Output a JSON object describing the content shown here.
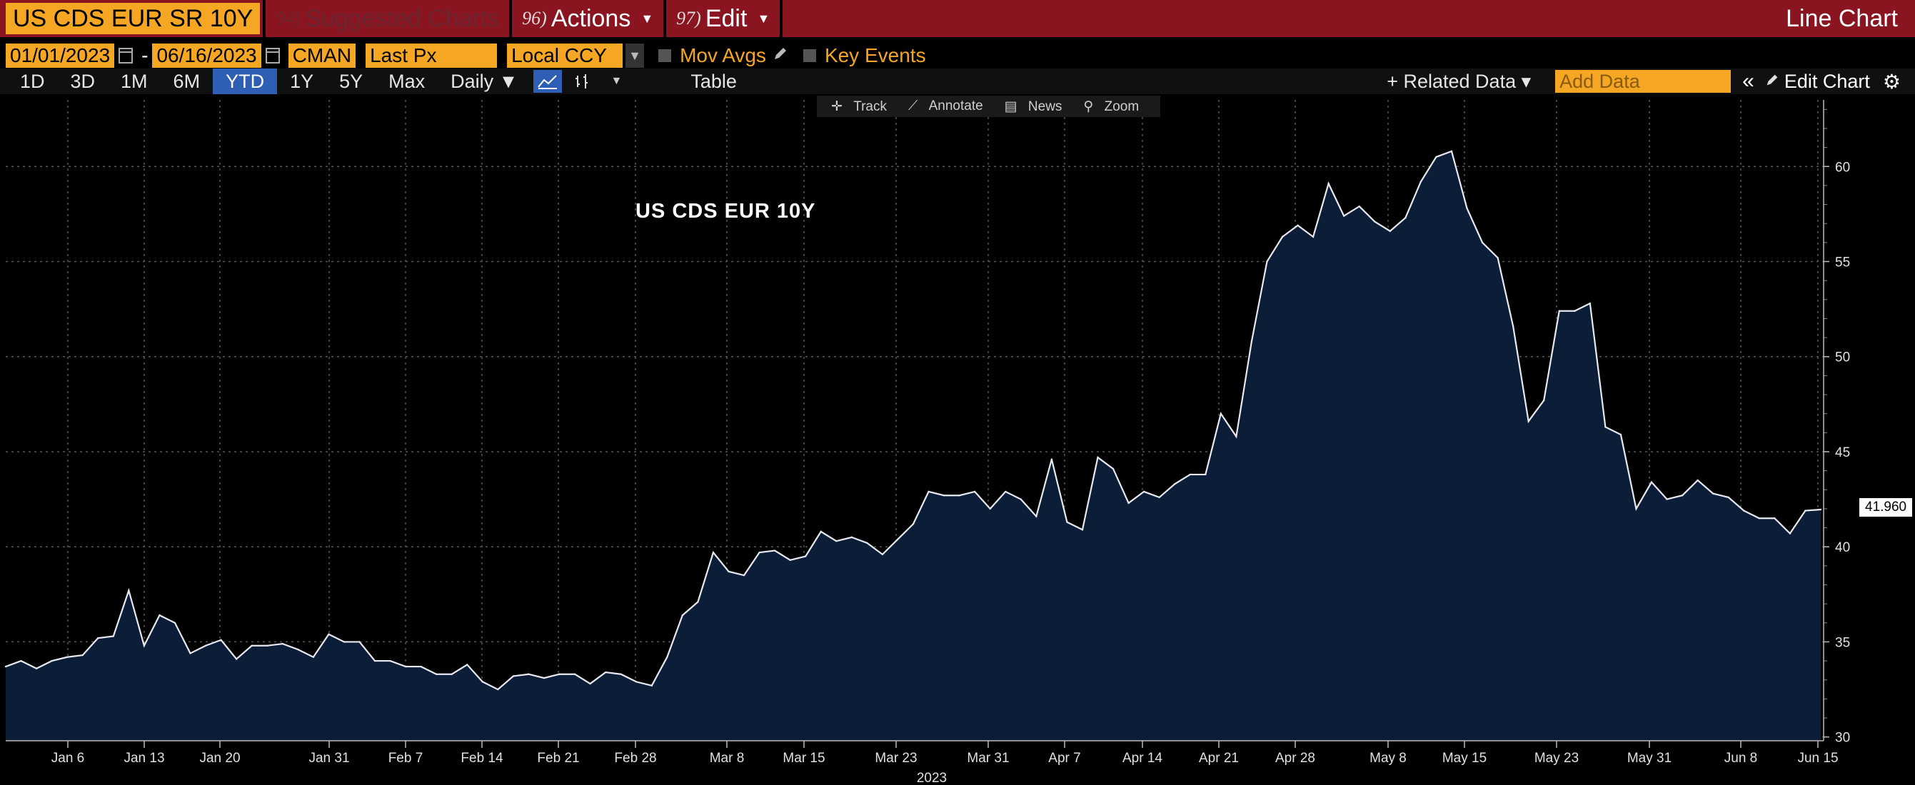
{
  "titlebar": {
    "ticker": "US CDS EUR SR 10Y",
    "suggested": {
      "num": "94)",
      "label": "Suggested Charts"
    },
    "actions": {
      "num": "96)",
      "label": "Actions"
    },
    "edit": {
      "num": "97)",
      "label": "Edit"
    },
    "chart_type": "Line Chart"
  },
  "controls": {
    "start_date": "01/01/2023",
    "end_date": "06/16/2023",
    "source": "CMAN",
    "field": "Last Px",
    "currency": "Local CCY",
    "mov_avgs": "Mov Avgs",
    "key_events": "Key Events"
  },
  "toolbar": {
    "ranges": [
      "1D",
      "3D",
      "1M",
      "6M",
      "YTD",
      "1Y",
      "5Y",
      "Max"
    ],
    "selected_range": "YTD",
    "frequency": "Daily ▼",
    "table": "Table",
    "related": "+ Related Data ▾",
    "add_data_placeholder": "Add Data",
    "edit_chart": "Edit Chart"
  },
  "chart_tools": [
    "Track",
    "Annotate",
    "News",
    "Zoom"
  ],
  "colors": {
    "title_bar": "#8a1520",
    "accent": "#f5a623",
    "fill": "#0c1d38",
    "line": "#e8e8f0",
    "selected": "#2f5fb5"
  },
  "chart_data": {
    "type": "area",
    "title": "US CDS EUR 10Y",
    "last_value": "41.960",
    "x_axis_year": "2023",
    "x_ticks": [
      "Jan 6",
      "Jan 13",
      "Jan 20",
      "Jan 31",
      "Feb 7",
      "Feb 14",
      "Feb 21",
      "Feb 28",
      "Mar 8",
      "Mar 15",
      "Mar 23",
      "Mar 31",
      "Apr 7",
      "Apr 14",
      "Apr 21",
      "Apr 28",
      "May 8",
      "May 15",
      "May 23",
      "May 31",
      "Jun 8",
      "Jun 15"
    ],
    "y_ticks": [
      30,
      35,
      40,
      45,
      50,
      55,
      60
    ],
    "ylim": [
      29.8,
      63.5
    ],
    "grid": true,
    "values": [
      33.7,
      34.0,
      33.6,
      34.0,
      34.2,
      34.3,
      35.2,
      35.3,
      37.7,
      34.8,
      36.4,
      36.0,
      34.4,
      34.8,
      35.1,
      34.1,
      34.8,
      34.8,
      34.9,
      34.6,
      34.2,
      35.4,
      35.0,
      35.0,
      34.0,
      34.0,
      33.7,
      33.7,
      33.3,
      33.3,
      33.8,
      32.9,
      32.5,
      33.2,
      33.3,
      33.1,
      33.3,
      33.3,
      32.8,
      33.4,
      33.3,
      32.9,
      32.7,
      34.2,
      36.4,
      37.1,
      39.7,
      38.7,
      38.5,
      39.7,
      39.8,
      39.3,
      39.5,
      40.8,
      40.3,
      40.5,
      40.2,
      39.6,
      40.4,
      41.2,
      42.9,
      42.7,
      42.7,
      42.9,
      42.0,
      42.9,
      42.5,
      41.6,
      44.6,
      41.3,
      40.9,
      44.7,
      44.1,
      42.3,
      42.9,
      42.6,
      43.3,
      43.8,
      43.8,
      47.0,
      45.8,
      50.8,
      55.0,
      56.3,
      56.9,
      56.3,
      59.1,
      57.4,
      57.9,
      57.1,
      56.6,
      57.3,
      59.2,
      60.5,
      60.8,
      57.8,
      56.0,
      55.2,
      51.6,
      46.6,
      47.7,
      52.4,
      52.4,
      52.8,
      46.3,
      45.9,
      42.0,
      43.4,
      42.5,
      42.7,
      43.5,
      42.8,
      42.6,
      41.9,
      41.5,
      41.5,
      40.7,
      41.9,
      41.96
    ]
  }
}
